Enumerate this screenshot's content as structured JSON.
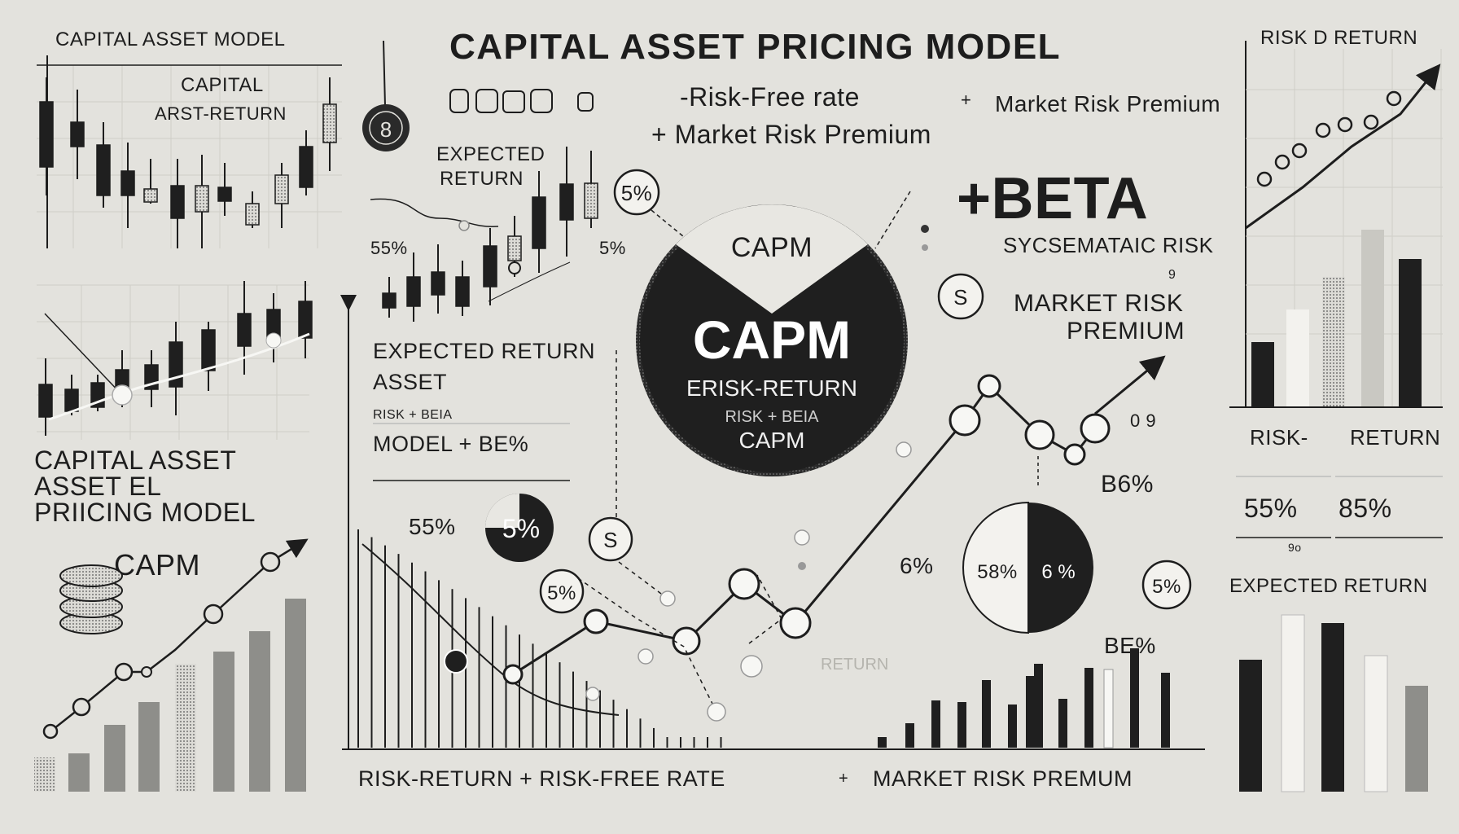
{
  "title": "CAPITAL ASSET PRICING MODEL",
  "labels": {
    "cap_asset_model": "CAPITAL ASSET MODEL",
    "capital": "CAPITAL",
    "arst_return": "ARST-RETURN",
    "expected_return_1": "EXPECTED",
    "expected_return_2": "RETURN",
    "pct_55_left": "55%",
    "pct_5_left": "5%",
    "risk_free_rate": "-Risk-Free rate",
    "plus_mrp_1": "+ Market Risk Premium",
    "mrp_top_right": "Market Risk Premium",
    "plus_beta": "+BETA",
    "systematic_risk": "SYCSEMATAIC RISK",
    "market_risk": "MARKET RISK",
    "premium": "PREMIUM",
    "exp_return_asset_1": "EXPECTED RETURN",
    "exp_return_asset_2": "ASSET",
    "model_beta": "MODEL + BE%",
    "capital_asset": "CAPITAL  ASSET",
    "asset_el": "ASSET        EL",
    "pricing_model": "PRIICING MODEL",
    "capm_small": "CAPM",
    "pct_55_mid": "55%",
    "pct_5_badge": "5%",
    "circle_capm_top": "CAPM",
    "circle_capm_main": "CAPM",
    "circle_risk_return": "ERISK-RETURN",
    "circle_risk_beta": "RISK + BEIA",
    "circle_capm_bottom": "CAPM",
    "pct_09": "0 9",
    "pct_86": "B6%",
    "pct_6": "6%",
    "pie_58": "58%",
    "pie_6": "6 %",
    "badge_5": "5%",
    "be_pct": "BE%",
    "return_faint": "RETURN",
    "risk_return_top": "RISK D RETURN",
    "risk": "RISK-",
    "return": "RETURN",
    "pct_55_right": "55%",
    "pct_85_right": "85%",
    "small_90": "9o",
    "expected_return_right": "EXPECTED RETURN",
    "bottom_risk_return": "RISK-RETURN + RISK-FREE RATE",
    "bottom_arrow": "+",
    "bottom_mrp": "MARKET RISK PREMUM",
    "dollar": "$",
    "dollar_s": "S",
    "eight": "8",
    "nine": "9"
  },
  "colors": {
    "background": "#e3e2dd",
    "ink": "#1d1d1d",
    "grid": "#cfcec8",
    "grey_bar": "#8e8e8a",
    "light_bar": "#c9c8c2"
  },
  "icons": [
    "dollar-coin-icon",
    "coin-stack-icon",
    "money-bag-icon",
    "arrow-up-icon",
    "coin-row-icon"
  ]
}
